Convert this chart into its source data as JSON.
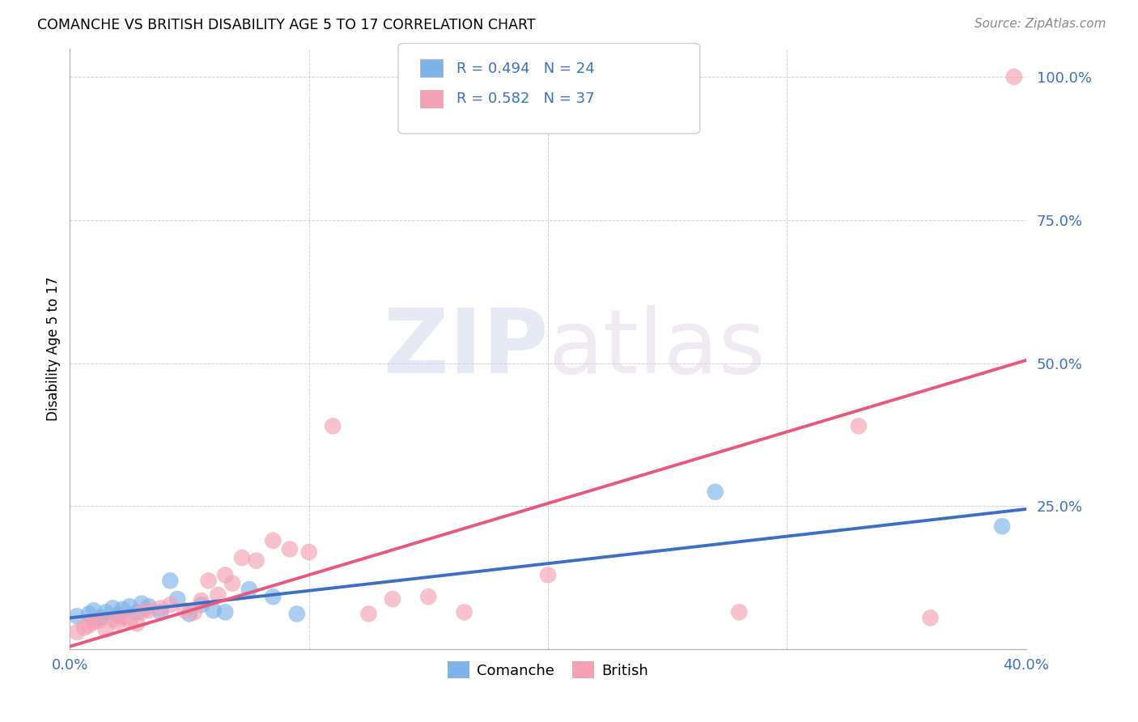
{
  "title": "COMANCHE VS BRITISH DISABILITY AGE 5 TO 17 CORRELATION CHART",
  "source": "Source: ZipAtlas.com",
  "ylabel": "Disability Age 5 to 17",
  "xlim": [
    0.0,
    0.4
  ],
  "ylim": [
    0.0,
    1.05
  ],
  "yticks": [
    0.0,
    0.25,
    0.5,
    0.75,
    1.0
  ],
  "ytick_labels": [
    "",
    "25.0%",
    "50.0%",
    "75.0%",
    "100.0%"
  ],
  "xticks": [
    0.0,
    0.1,
    0.2,
    0.3,
    0.4
  ],
  "xtick_labels": [
    "0.0%",
    "",
    "",
    "",
    "40.0%"
  ],
  "grid_color": "#cccccc",
  "watermark_zip": "ZIP",
  "watermark_atlas": "atlas",
  "comanche_color": "#7eb3e8",
  "british_color": "#f4a0b5",
  "comanche_R": 0.494,
  "comanche_N": 24,
  "british_R": 0.582,
  "british_N": 37,
  "comanche_line_color": "#3a6fc4",
  "british_line_color": "#e8587a",
  "legend_text_color": "#3a6fc4",
  "comanche_line_x": [
    0.0,
    0.4
  ],
  "comanche_line_y": [
    0.055,
    0.245
  ],
  "british_line_x": [
    0.0,
    0.4
  ],
  "british_line_y": [
    0.005,
    0.505
  ],
  "comanche_scatter_x": [
    0.003,
    0.008,
    0.01,
    0.013,
    0.015,
    0.018,
    0.02,
    0.022,
    0.025,
    0.028,
    0.03,
    0.033,
    0.038,
    0.042,
    0.045,
    0.05,
    0.055,
    0.06,
    0.065,
    0.075,
    0.085,
    0.095,
    0.27,
    0.39
  ],
  "comanche_scatter_y": [
    0.058,
    0.062,
    0.068,
    0.055,
    0.065,
    0.072,
    0.06,
    0.07,
    0.075,
    0.065,
    0.08,
    0.075,
    0.065,
    0.12,
    0.088,
    0.062,
    0.078,
    0.068,
    0.065,
    0.105,
    0.092,
    0.062,
    0.275,
    0.215
  ],
  "british_scatter_x": [
    0.003,
    0.006,
    0.008,
    0.01,
    0.012,
    0.015,
    0.018,
    0.02,
    0.022,
    0.025,
    0.028,
    0.03,
    0.033,
    0.038,
    0.042,
    0.048,
    0.052,
    0.055,
    0.058,
    0.062,
    0.065,
    0.068,
    0.072,
    0.078,
    0.085,
    0.092,
    0.1,
    0.11,
    0.125,
    0.135,
    0.15,
    0.165,
    0.2,
    0.28,
    0.33,
    0.36,
    0.395
  ],
  "british_scatter_y": [
    0.03,
    0.038,
    0.042,
    0.048,
    0.05,
    0.035,
    0.052,
    0.048,
    0.055,
    0.05,
    0.045,
    0.065,
    0.068,
    0.072,
    0.078,
    0.068,
    0.065,
    0.085,
    0.12,
    0.095,
    0.13,
    0.115,
    0.16,
    0.155,
    0.19,
    0.175,
    0.17,
    0.39,
    0.062,
    0.088,
    0.092,
    0.065,
    0.13,
    0.065,
    0.39,
    0.055,
    1.0
  ]
}
